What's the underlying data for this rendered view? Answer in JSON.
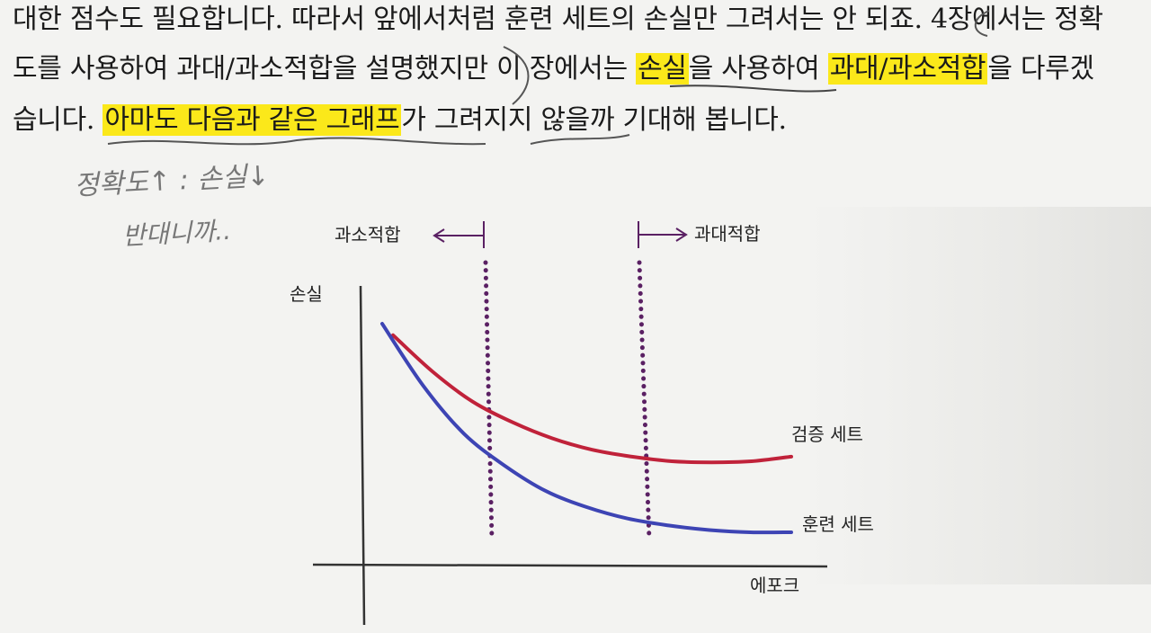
{
  "text": {
    "line1": "대한 점수도 필요합니다. 따라서 앞에서처럼 훈련 세트의 손실만 그려서는 안 되죠. 4장에서는 정확",
    "line2_before_hl1": "도를 사용하여 과대/과소적합을 설명했지만 이 장에서는 ",
    "line2_hl1": "손실",
    "line2_mid": "을 사용하여 ",
    "line2_hl2": "과대/과소적합",
    "line2_after": "을 다루겠",
    "line3_before": "습니다. ",
    "line3_hl": "아마도 다음과 같은 그래프",
    "line3_after": "가 그려지지 않을까 기대해 봅니다."
  },
  "annotations": {
    "note1": "정확도↑ : 손실↓",
    "note2": "반대니까.."
  },
  "figure": {
    "ylabel": "손실",
    "xlabel": "에포크",
    "underfit_label": "과소적합",
    "overfit_label": "과대적합",
    "colors": {
      "validation": "#c0223a",
      "train": "#3d44b4",
      "marker": "#5a2063"
    }
  },
  "chart_data": {
    "type": "line",
    "xlabel": "에포크",
    "ylabel": "손실",
    "x": [
      0,
      1,
      2,
      3,
      4,
      5,
      6,
      7,
      8,
      9,
      10
    ],
    "series": [
      {
        "name": "검증 세트",
        "values": [
          0.9,
          0.74,
          0.61,
          0.52,
          0.45,
          0.4,
          0.37,
          0.35,
          0.345,
          0.35,
          0.37
        ]
      },
      {
        "name": "훈련 세트",
        "values": [
          0.95,
          0.68,
          0.47,
          0.33,
          0.22,
          0.15,
          0.1,
          0.07,
          0.05,
          0.04,
          0.04
        ]
      }
    ],
    "vlines": [
      {
        "label": "과소적합",
        "x": 2.8
      },
      {
        "label": "과대적합",
        "x": 6.9
      }
    ],
    "grid": false
  }
}
